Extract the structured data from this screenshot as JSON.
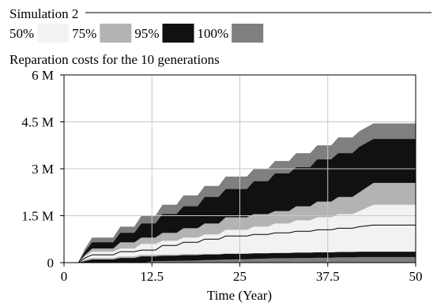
{
  "chart_data": {
    "type": "area",
    "simulation_label": "Simulation 2",
    "title": "Reparation costs for the 10 generations",
    "xlabel": "Time (Year)",
    "ylabel": "",
    "xlim": [
      0,
      50
    ],
    "ylim": [
      0,
      6000000
    ],
    "x_ticks": [
      0,
      12.5,
      25,
      37.5,
      50
    ],
    "x_tick_labels": [
      "0",
      "12.5",
      "25",
      "37.5",
      "50"
    ],
    "y_ticks": [
      0,
      1500000,
      3000000,
      4500000,
      6000000
    ],
    "y_tick_labels": [
      "0",
      "1.5 M",
      "3 M",
      "4.5 M",
      "6 M"
    ],
    "grid": true,
    "legend_placement": "top",
    "legend": [
      {
        "label": "50%",
        "color": "#f2f2f2"
      },
      {
        "label": "75%",
        "color": "#b3b3b3"
      },
      {
        "label": "95%",
        "color": "#111111"
      },
      {
        "label": "100%",
        "color": "#7f7f7f"
      }
    ],
    "x": [
      0,
      2,
      3,
      4,
      7,
      8,
      10,
      11,
      13,
      14,
      16,
      17,
      19,
      20,
      22,
      23,
      26,
      27,
      29,
      30,
      32,
      33,
      35,
      36,
      38,
      39,
      41,
      42,
      44,
      50
    ],
    "median": [
      0,
      0,
      150000,
      250000,
      250000,
      350000,
      350000,
      400000,
      400000,
      550000,
      550000,
      650000,
      650000,
      750000,
      750000,
      850000,
      850000,
      900000,
      900000,
      950000,
      950000,
      1000000,
      1000000,
      1050000,
      1050000,
      1100000,
      1100000,
      1150000,
      1200000,
      1200000
    ],
    "bands": [
      {
        "level": "100%",
        "lower": [
          0,
          0,
          0,
          0,
          0,
          0,
          0,
          0,
          0,
          0,
          0,
          0,
          0,
          0,
          0,
          0,
          0,
          0,
          0,
          0,
          0,
          0,
          0,
          0,
          0,
          0,
          0,
          0,
          0,
          0
        ],
        "upper": [
          0,
          0,
          450000,
          800000,
          800000,
          1150000,
          1150000,
          1500000,
          1500000,
          1850000,
          1850000,
          2150000,
          2150000,
          2450000,
          2450000,
          2750000,
          2750000,
          3000000,
          3000000,
          3250000,
          3250000,
          3500000,
          3500000,
          3750000,
          3750000,
          4000000,
          4000000,
          4200000,
          4450000,
          4450000
        ]
      },
      {
        "level": "95%",
        "lower": [
          0,
          0,
          0,
          0,
          0,
          0,
          0,
          0,
          50000,
          50000,
          60000,
          60000,
          70000,
          80000,
          90000,
          100000,
          110000,
          120000,
          130000,
          140000,
          140000,
          150000,
          150000,
          160000,
          160000,
          170000,
          170000,
          180000,
          180000,
          180000
        ],
        "upper": [
          0,
          0,
          350000,
          650000,
          650000,
          950000,
          950000,
          1250000,
          1250000,
          1550000,
          1550000,
          1800000,
          1800000,
          2100000,
          2100000,
          2350000,
          2350000,
          2600000,
          2600000,
          2850000,
          2850000,
          3050000,
          3050000,
          3300000,
          3300000,
          3500000,
          3500000,
          3700000,
          3950000,
          3950000
        ]
      },
      {
        "level": "75%",
        "lower": [
          0,
          0,
          50000,
          100000,
          100000,
          150000,
          150000,
          200000,
          200000,
          220000,
          220000,
          240000,
          240000,
          260000,
          260000,
          280000,
          280000,
          300000,
          300000,
          310000,
          310000,
          320000,
          320000,
          330000,
          330000,
          340000,
          340000,
          350000,
          350000,
          350000
        ],
        "upper": [
          0,
          0,
          250000,
          450000,
          450000,
          650000,
          650000,
          800000,
          800000,
          950000,
          950000,
          1100000,
          1100000,
          1250000,
          1250000,
          1450000,
          1450000,
          1550000,
          1550000,
          1650000,
          1650000,
          1800000,
          1800000,
          1950000,
          1950000,
          2100000,
          2100000,
          2250000,
          2550000,
          2550000
        ]
      },
      {
        "level": "50%",
        "lower": [
          0,
          0,
          100000,
          150000,
          150000,
          200000,
          200000,
          250000,
          250000,
          260000,
          260000,
          270000,
          270000,
          280000,
          280000,
          290000,
          290000,
          300000,
          300000,
          310000,
          310000,
          320000,
          320000,
          330000,
          330000,
          340000,
          340000,
          350000,
          350000,
          350000
        ],
        "upper": [
          0,
          0,
          200000,
          350000,
          350000,
          450000,
          450000,
          600000,
          600000,
          700000,
          700000,
          800000,
          800000,
          900000,
          900000,
          1050000,
          1050000,
          1150000,
          1150000,
          1250000,
          1250000,
          1350000,
          1350000,
          1450000,
          1450000,
          1550000,
          1550000,
          1650000,
          1850000,
          1850000
        ]
      }
    ]
  }
}
